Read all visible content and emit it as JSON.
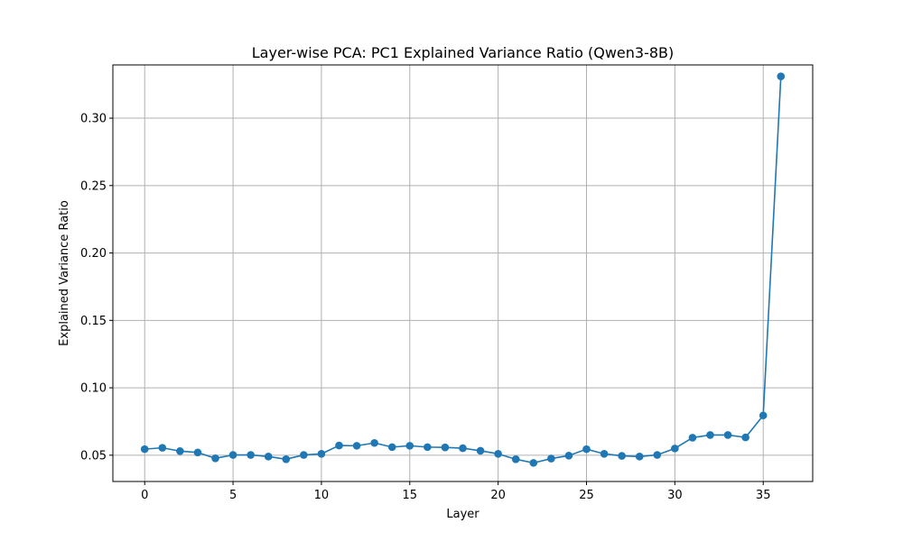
{
  "colors": {
    "series": "#1f77b4",
    "grid": "#b0b0b0",
    "axis": "#000000"
  },
  "chart_data": {
    "type": "line",
    "title": "Layer-wise PCA: PC1 Explained Variance Ratio (Qwen3-8B)",
    "xlabel": "Layer",
    "ylabel": "Explained Variance Ratio",
    "xlim": [
      -1.8,
      37.8
    ],
    "ylim": [
      0.0305,
      0.3395
    ],
    "grid": true,
    "marker": "circle",
    "x_ticks": [
      0,
      5,
      10,
      15,
      20,
      25,
      30,
      35
    ],
    "x_tick_labels": [
      "0",
      "5",
      "10",
      "15",
      "20",
      "25",
      "30",
      "35"
    ],
    "y_ticks": [
      0.05,
      0.1,
      0.15,
      0.2,
      0.25,
      0.3
    ],
    "y_tick_labels": [
      "0.05",
      "0.10",
      "0.15",
      "0.20",
      "0.25",
      "0.30"
    ],
    "x": [
      0,
      1,
      2,
      3,
      4,
      5,
      6,
      7,
      8,
      9,
      10,
      11,
      12,
      13,
      14,
      15,
      16,
      17,
      18,
      19,
      20,
      21,
      22,
      23,
      24,
      25,
      26,
      27,
      28,
      29,
      30,
      31,
      32,
      33,
      34,
      35,
      36
    ],
    "series": [
      {
        "name": "PC1",
        "values": [
          0.0545,
          0.0555,
          0.053,
          0.052,
          0.0477,
          0.0502,
          0.0502,
          0.049,
          0.047,
          0.0502,
          0.051,
          0.0572,
          0.057,
          0.0591,
          0.056,
          0.057,
          0.056,
          0.0558,
          0.0552,
          0.0533,
          0.051,
          0.047,
          0.0443,
          0.0475,
          0.0497,
          0.0545,
          0.051,
          0.0495,
          0.049,
          0.0502,
          0.055,
          0.063,
          0.065,
          0.065,
          0.0632,
          0.0795,
          0.331
        ]
      }
    ]
  }
}
